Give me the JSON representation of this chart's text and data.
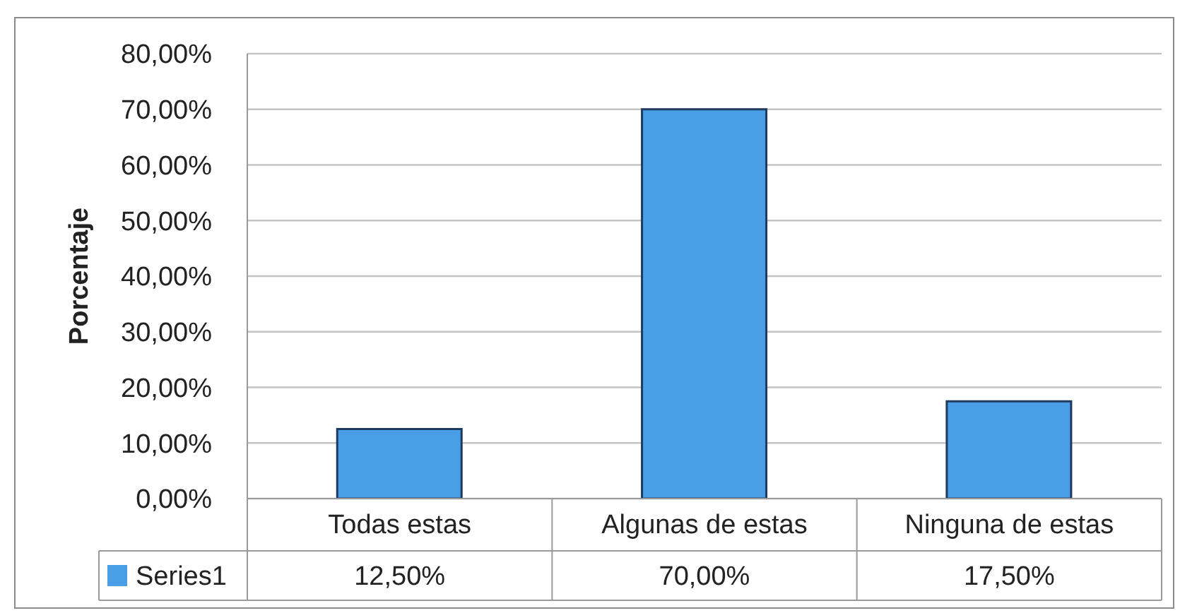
{
  "chart_data": {
    "type": "bar",
    "ylabel": "Porcentaje",
    "categories": [
      "Todas estas",
      "Algunas de estas",
      "Ninguna de estas"
    ],
    "series": [
      {
        "name": "Series1",
        "color": "#4a9ee6",
        "values": [
          12.5,
          70,
          17.5
        ],
        "value_labels": [
          "12,50%",
          "70,00%",
          "17,50%"
        ]
      }
    ],
    "ylim": [
      0,
      80
    ],
    "yticks": [
      {
        "value": 0,
        "label": "0,00%"
      },
      {
        "value": 10,
        "label": "10,00%"
      },
      {
        "value": 20,
        "label": "20,00%"
      },
      {
        "value": 30,
        "label": "30,00%"
      },
      {
        "value": 40,
        "label": "40,00%"
      },
      {
        "value": 50,
        "label": "50,00%"
      },
      {
        "value": 60,
        "label": "60,00%"
      },
      {
        "value": 70,
        "label": "70,00%"
      },
      {
        "value": 80,
        "label": "80,00%"
      }
    ],
    "grid": "y",
    "legend": "bottom"
  }
}
